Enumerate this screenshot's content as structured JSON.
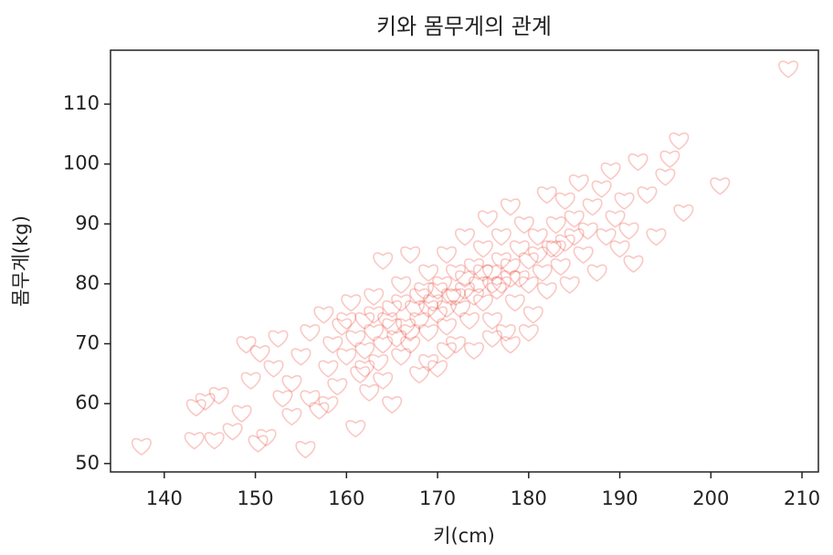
{
  "chart_data": {
    "type": "scatter",
    "title": "키와 몸무게의 관계",
    "x_label": "키(cm)",
    "y_label": "몸무게(kg)",
    "color": "#e8392a",
    "marker": "heart",
    "grid": false,
    "xlim": [
      134.1,
      211.8
    ],
    "ylim": [
      48.6,
      119.0
    ],
    "xticks": [
      140,
      150,
      160,
      170,
      180,
      190,
      200,
      210
    ],
    "yticks": [
      50,
      60,
      70,
      80,
      90,
      100,
      110
    ],
    "x": [
      137.5,
      143.3,
      143.5,
      144.5,
      146,
      145.5,
      147.5,
      150.3,
      151.2,
      155.5,
      148.5,
      149.5,
      149,
      150.5,
      152,
      153,
      152.5,
      154,
      155,
      156,
      157,
      157.5,
      158,
      158.5,
      159,
      159.5,
      160,
      160.5,
      161,
      161,
      161.5,
      162,
      162,
      162.5,
      163,
      163,
      163.5,
      164,
      164,
      164.5,
      165,
      165,
      165.5,
      166,
      166,
      166.5,
      167,
      167,
      167.5,
      168,
      168,
      168.5,
      169,
      169,
      169.5,
      170,
      170,
      170.5,
      171,
      171,
      171.5,
      172,
      172,
      172.5,
      173,
      173,
      173.5,
      174,
      174,
      174.5,
      175,
      175,
      175.5,
      176,
      176,
      176.5,
      177,
      177,
      177.5,
      178,
      178,
      178.5,
      179,
      179.5,
      180,
      180,
      180.5,
      181,
      181.5,
      182,
      182,
      182.5,
      183,
      183.5,
      184,
      184,
      184.5,
      185,
      185.5,
      186,
      186.5,
      187,
      187.5,
      188,
      188.5,
      189,
      189.5,
      190,
      190.5,
      191,
      191.5,
      192,
      193,
      194,
      195,
      195.5,
      196.5,
      197,
      201,
      208.5,
      160,
      163,
      166,
      168,
      170,
      172,
      174,
      176,
      178,
      165,
      167,
      169,
      171,
      173,
      175,
      177,
      179,
      181,
      183,
      185,
      162,
      164,
      158,
      156,
      154,
      176,
      178,
      180,
      171,
      169
    ],
    "y": [
      53,
      54,
      59.5,
      60.5,
      61.5,
      54,
      55.5,
      53.5,
      54.5,
      52.5,
      58.5,
      64,
      70,
      68.5,
      66,
      61,
      71,
      63.5,
      68,
      72,
      59,
      75,
      66,
      70,
      63,
      73,
      68,
      77,
      56,
      71,
      65,
      74,
      69,
      62,
      72,
      78,
      67,
      70,
      84,
      74,
      60,
      76,
      71,
      68,
      80,
      73,
      85,
      70,
      76,
      65,
      74,
      79,
      72,
      82,
      77,
      66,
      75,
      80,
      73,
      85,
      78,
      70,
      82,
      76,
      88,
      79,
      74,
      83,
      69,
      80,
      86,
      77,
      91,
      82,
      74,
      79,
      88,
      84,
      72,
      81,
      93,
      77,
      86,
      90,
      80,
      84,
      75,
      88,
      82,
      95,
      79,
      86,
      90,
      83,
      87,
      94,
      80,
      91,
      97,
      85,
      89,
      93,
      82,
      96,
      88,
      99,
      91,
      86,
      94,
      89,
      83.5,
      100.5,
      95,
      88,
      98,
      101,
      104,
      92,
      96.5,
      116,
      74,
      75,
      77,
      78,
      79,
      78,
      78,
      80,
      83,
      73,
      72,
      76,
      76,
      81,
      82,
      80,
      81,
      85,
      86,
      88,
      66,
      64,
      60,
      61,
      58,
      71,
      70,
      72,
      69,
      67
    ]
  }
}
